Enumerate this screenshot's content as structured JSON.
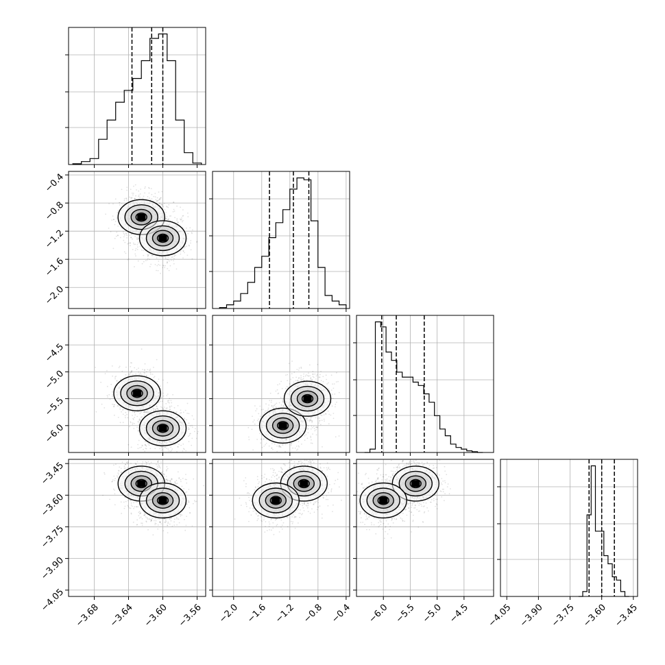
{
  "chart_data": {
    "type": "corner",
    "title": "",
    "parameters": 4,
    "grid": true,
    "axes": [
      {
        "index": 0,
        "range": [
          -3.71,
          -3.55
        ],
        "ticks": [
          -3.68,
          -3.64,
          -3.6,
          -3.56
        ],
        "tick_labels": [
          "−3.68",
          "−3.64",
          "−3.60",
          "−3.56"
        ]
      },
      {
        "index": 1,
        "range": [
          -2.3,
          -0.35
        ],
        "ticks": [
          -2.0,
          -1.6,
          -1.2,
          -0.8,
          -0.4
        ],
        "tick_labels": [
          "−2.0",
          "−1.6",
          "−1.2",
          "−0.8",
          "−0.4"
        ]
      },
      {
        "index": 2,
        "range": [
          -6.5,
          -3.95
        ],
        "ticks": [
          -6.0,
          -5.5,
          -5.0,
          -4.5
        ],
        "tick_labels": [
          "−6.0",
          "−5.5",
          "−5.0",
          "−4.5"
        ],
        "y_ticks": [
          -6.0,
          -5.5,
          -5.0,
          -4.5
        ],
        "y_tick_labels": [
          "−6.0",
          "−5.5",
          "−5.0",
          "−4.5"
        ]
      },
      {
        "index": 3,
        "range": [
          -4.08,
          -3.43
        ],
        "ticks": [
          -4.05,
          -3.9,
          -3.75,
          -3.6,
          -3.45
        ],
        "tick_labels": [
          "−4.05",
          "−3.90",
          "−3.75",
          "−3.60",
          "−3.45"
        ]
      }
    ],
    "diagonal": [
      {
        "param": 0,
        "bins": [
          -3.7,
          -3.69,
          -3.68,
          -3.67,
          -3.66,
          -3.65,
          -3.64,
          -3.63,
          -3.62,
          -3.61,
          -3.6,
          -3.59,
          -3.58,
          -3.57,
          -3.56
        ],
        "counts": [
          0.5,
          2,
          4,
          17,
          30,
          42,
          50,
          58,
          70,
          85,
          88,
          70,
          30,
          8,
          1
        ],
        "quantiles": [
          -3.636,
          -3.613,
          -3.6
        ]
      },
      {
        "param": 1,
        "bins": [
          -2.15,
          -2.05,
          -1.95,
          -1.85,
          -1.75,
          -1.65,
          -1.55,
          -1.45,
          -1.35,
          -1.25,
          -1.15,
          -1.05,
          -0.95,
          -0.85,
          -0.75,
          -0.65,
          -0.55,
          -0.45
        ],
        "counts": [
          0.5,
          2,
          4,
          8,
          14,
          22,
          28,
          38,
          46,
          53,
          64,
          70,
          69,
          47,
          22,
          7,
          4,
          2
        ],
        "quantiles": [
          -1.49,
          -1.15,
          -0.93
        ]
      },
      {
        "param": 2,
        "bins": [
          -6.3,
          -6.2,
          -6.1,
          -6.0,
          -5.9,
          -5.8,
          -5.7,
          -5.6,
          -5.5,
          -5.4,
          -5.3,
          -5.2,
          -5.1,
          -5.0,
          -4.9,
          -4.8,
          -4.7,
          -4.6,
          -4.5,
          -4.4,
          -4.3,
          -4.2
        ],
        "counts": [
          0,
          2,
          78,
          75,
          60,
          55,
          48,
          45,
          45,
          42,
          40,
          35,
          30,
          22,
          14,
          10,
          5,
          3,
          2,
          1,
          0.5,
          0
        ],
        "quantiles": [
          -6.03,
          -5.76,
          -5.24
        ]
      },
      {
        "param": 3,
        "bins": [
          -3.7,
          -3.68,
          -3.66,
          -3.64,
          -3.62,
          -3.6,
          -3.58,
          -3.56,
          -3.54,
          -3.52,
          -3.5,
          -3.48
        ],
        "counts": [
          0,
          3,
          50,
          80,
          40,
          40,
          25,
          20,
          12,
          10,
          3,
          0
        ],
        "quantiles": [
          -3.66,
          -3.6,
          -3.54
        ]
      }
    ],
    "pairs": [
      {
        "x": 0,
        "y": 1,
        "density_peaks": [
          {
            "x": -3.625,
            "y": -1.0
          },
          {
            "x": -3.6,
            "y": -1.3
          }
        ]
      },
      {
        "x": 0,
        "y": 2,
        "density_peaks": [
          {
            "x": -3.63,
            "y": -5.4
          },
          {
            "x": -3.6,
            "y": -6.05
          }
        ]
      },
      {
        "x": 1,
        "y": 2,
        "density_peaks": [
          {
            "x": -1.3,
            "y": -6.0
          },
          {
            "x": -0.95,
            "y": -5.5
          }
        ]
      },
      {
        "x": 0,
        "y": 3,
        "density_peaks": [
          {
            "x": -3.625,
            "y": -3.545
          },
          {
            "x": -3.6,
            "y": -3.625
          }
        ]
      },
      {
        "x": 1,
        "y": 3,
        "density_peaks": [
          {
            "x": -1.0,
            "y": -3.545
          },
          {
            "x": -1.4,
            "y": -3.625
          }
        ]
      },
      {
        "x": 2,
        "y": 3,
        "density_peaks": [
          {
            "x": -5.4,
            "y": -3.545
          },
          {
            "x": -6.0,
            "y": -3.625
          }
        ]
      }
    ]
  }
}
